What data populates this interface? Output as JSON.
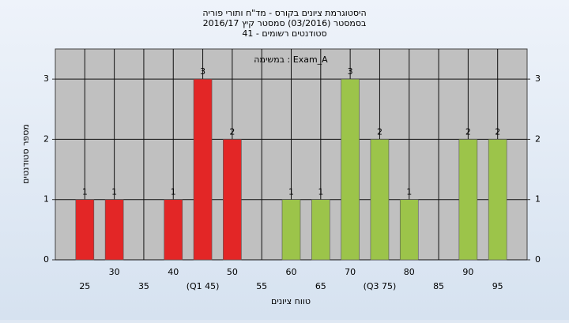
{
  "chart_data": {
    "type": "bar",
    "title": [
      "היסטוגרמת ציונים בקורס - מד\"ח ותורי פוריה",
      "בסמסטר (03/2016) סמסטר קיץ 2016/17",
      "סטודנטים רשומים - 41"
    ],
    "annotation": "במשימה : Exam_A",
    "x_label": "טווח ציונים",
    "y_label": "מספר סטודנטים",
    "categories": [
      "25",
      "30",
      "35",
      "40",
      "(Q1 45)",
      "50",
      "55",
      "60",
      "65",
      "70",
      "(Q3 75)",
      "80",
      "85",
      "90",
      "95"
    ],
    "values": [
      1,
      1,
      0,
      1,
      3,
      2,
      0,
      1,
      1,
      3,
      2,
      1,
      0,
      2,
      2
    ],
    "colors": [
      "#e32626",
      "#e32626",
      "#e32626",
      "#e32626",
      "#e32626",
      "#e32626",
      "#e32626",
      "#9cc44a",
      "#9cc44a",
      "#9cc44a",
      "#9cc44a",
      "#9cc44a",
      "#9cc44a",
      "#9cc44a",
      "#9cc44a"
    ],
    "ylim": [
      0,
      3.5
    ],
    "yticks": [
      0,
      1,
      2,
      3
    ],
    "grid": true
  }
}
